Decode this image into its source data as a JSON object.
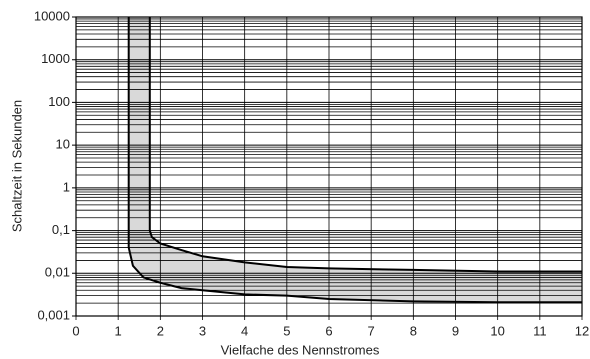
{
  "chart_data": {
    "type": "band",
    "xlabel": "Vielfache des Nennstromes",
    "ylabel": "Schaltzeit in Sekunden",
    "xlim": [
      0,
      12
    ],
    "xticks": [
      0,
      1,
      2,
      3,
      4,
      5,
      6,
      7,
      8,
      9,
      10,
      11,
      12
    ],
    "ylim": [
      0.001,
      10000
    ],
    "yscale": "log",
    "yticks": [
      {
        "value": 0.001,
        "label": "0,001"
      },
      {
        "value": 0.01,
        "label": "0,01"
      },
      {
        "value": 0.1,
        "label": "0,1"
      },
      1,
      10,
      100,
      1000,
      10000
    ],
    "yminorticks": [
      0.002,
      0.003,
      0.004,
      0.005,
      0.006,
      0.007,
      0.008,
      0.009,
      0.02,
      0.03,
      0.04,
      0.05,
      0.06,
      0.07,
      0.08,
      0.09,
      0.2,
      0.3,
      0.4,
      0.5,
      0.6,
      0.7,
      0.8,
      0.9,
      2,
      3,
      4,
      5,
      6,
      7,
      8,
      9,
      20,
      30,
      40,
      50,
      60,
      70,
      80,
      90,
      200,
      300,
      400,
      500,
      600,
      700,
      800,
      900,
      2000,
      3000,
      4000,
      5000,
      6000,
      7000,
      8000,
      9000
    ],
    "grid": true,
    "band_color": "#d9d9d9",
    "series": [
      {
        "color": "#000000",
        "x": [
          1.75,
          1.75,
          1.8,
          2,
          2.5,
          3,
          4,
          5,
          6,
          8,
          10,
          12
        ],
        "values": [
          10000,
          0.1,
          0.07,
          0.05,
          0.035,
          0.025,
          0.018,
          0.014,
          0.013,
          0.012,
          0.011,
          0.011
        ]
      },
      {
        "color": "#000000",
        "x": [
          1.25,
          1.25,
          1.35,
          1.6,
          2,
          2.5,
          3,
          4,
          5,
          6,
          8,
          10,
          12
        ],
        "values": [
          10000,
          0.04,
          0.015,
          0.008,
          0.006,
          0.0045,
          0.004,
          0.0032,
          0.003,
          0.0025,
          0.0022,
          0.0021,
          0.0021
        ]
      }
    ]
  }
}
